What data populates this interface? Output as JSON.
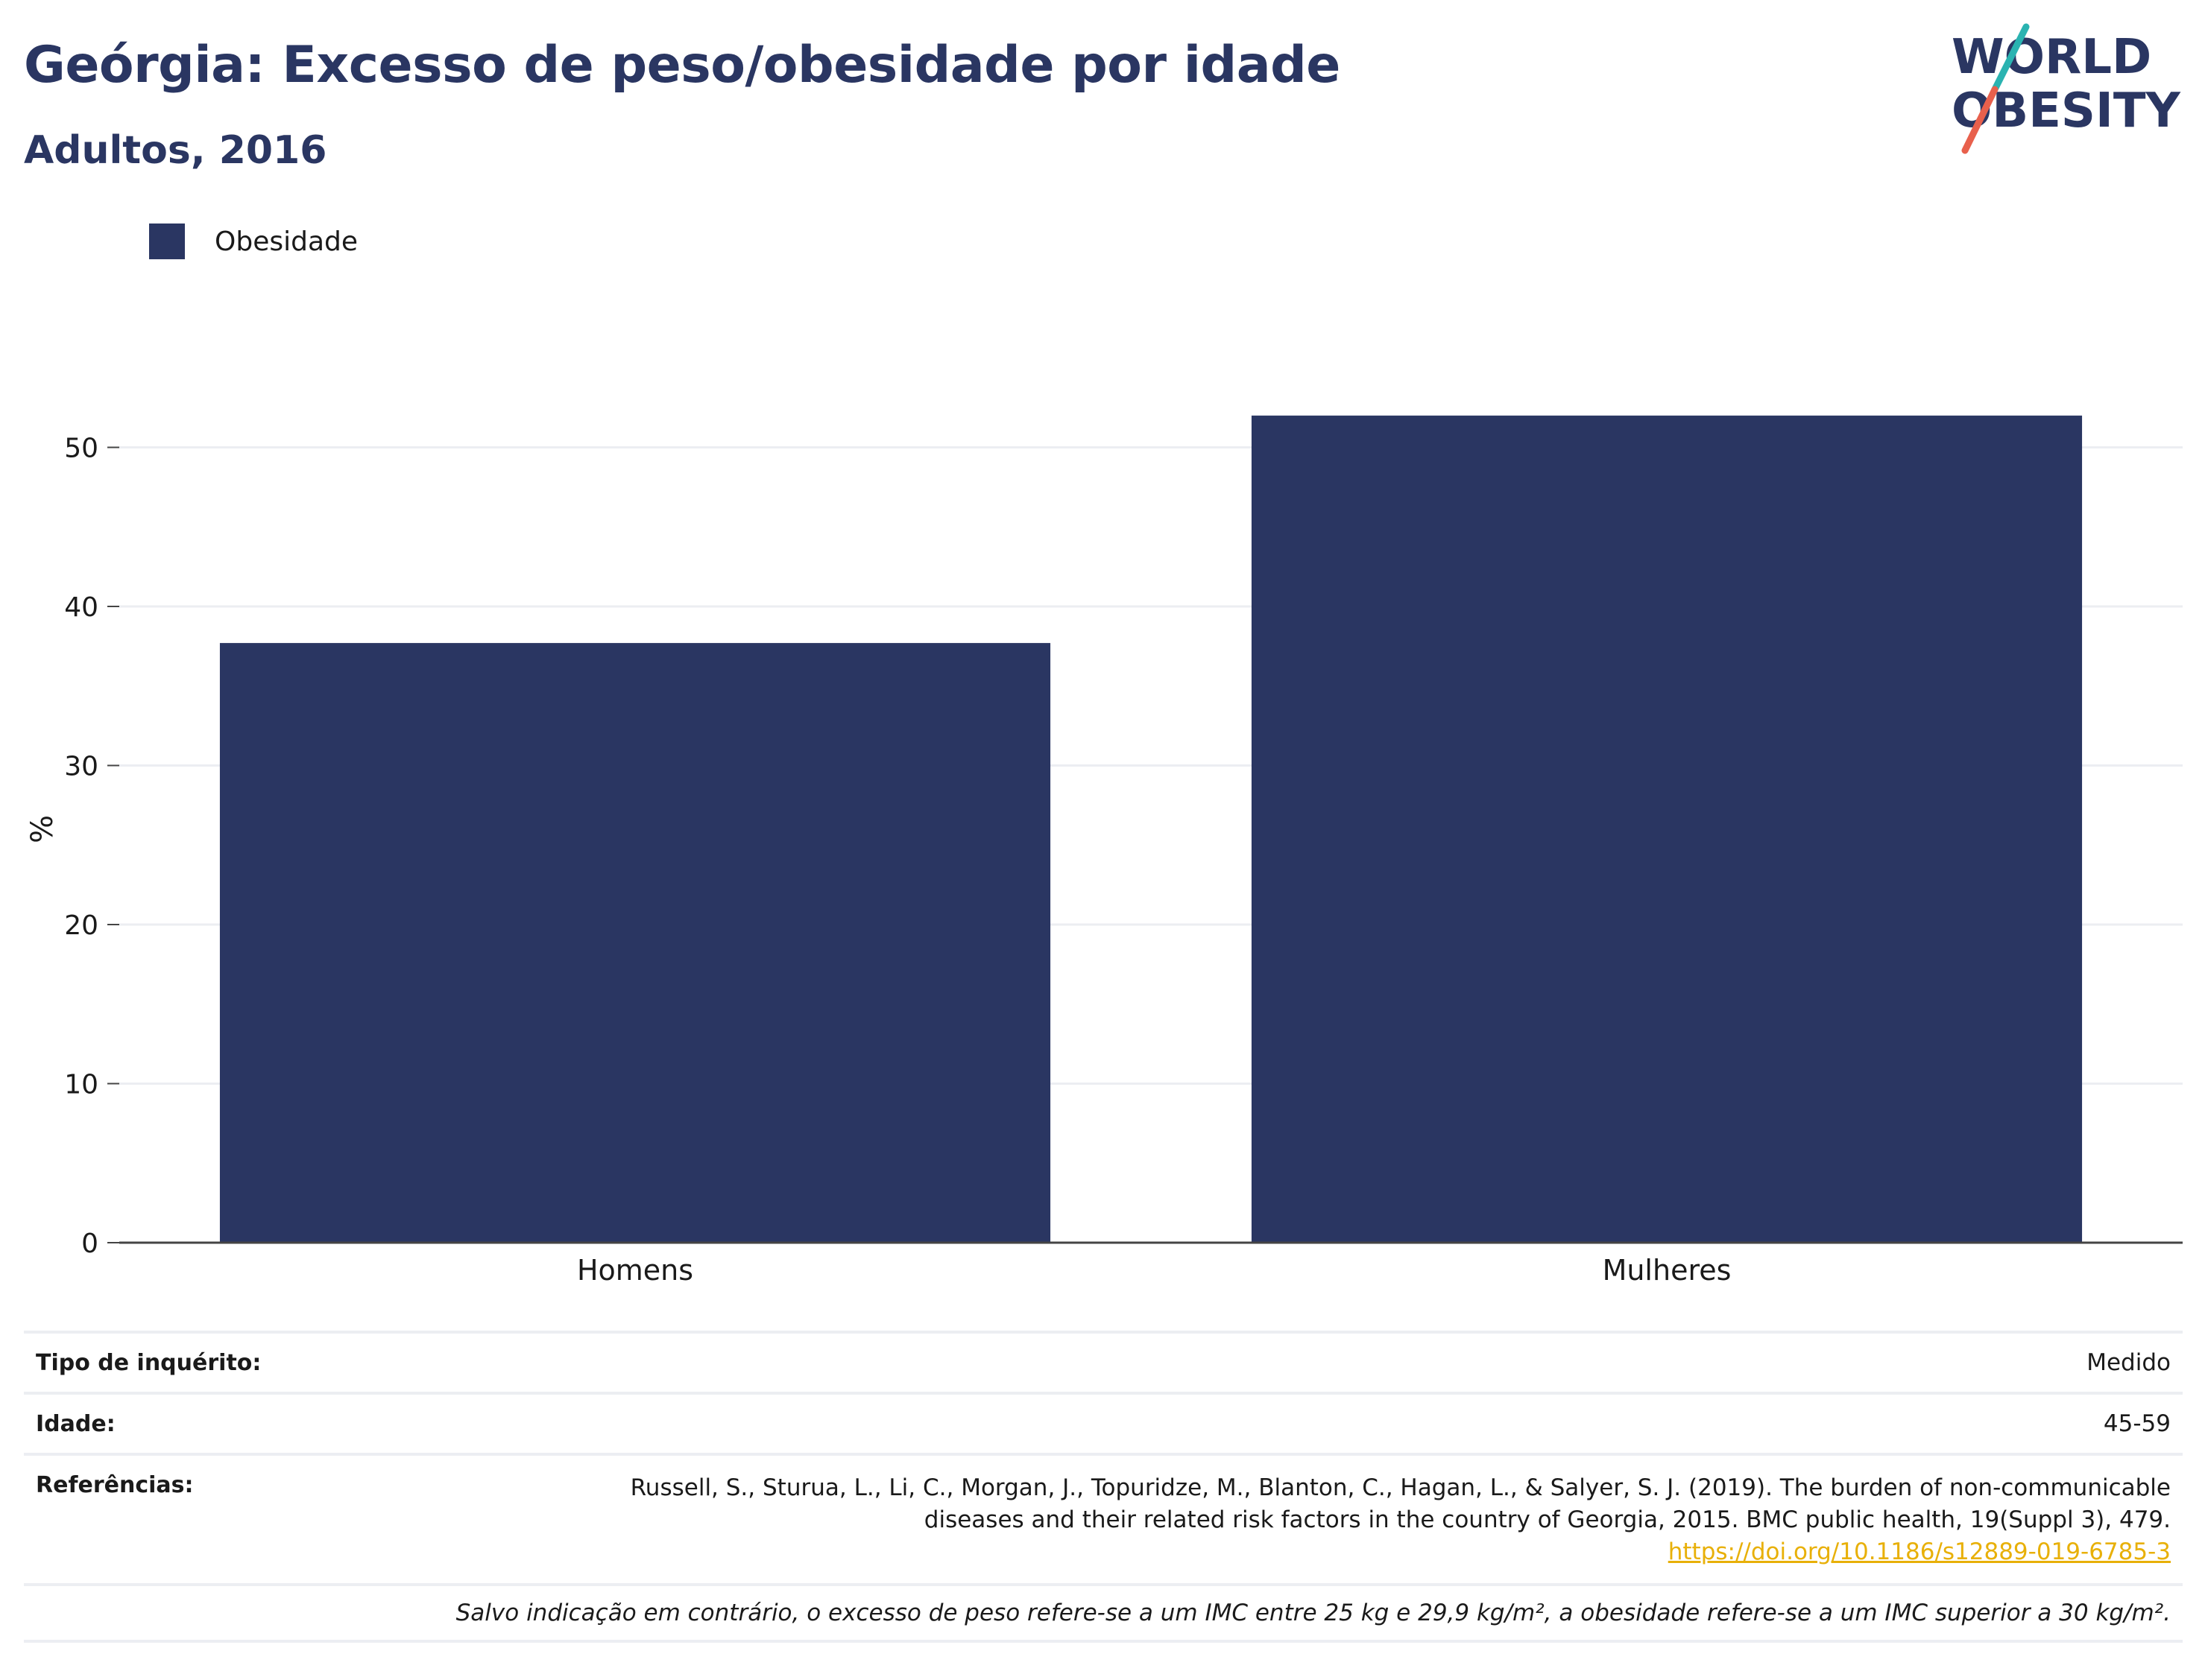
{
  "title": "Geórgia: Excesso de peso/obesidade por idade",
  "subtitle": "Adultos, 2016",
  "logo": {
    "line1": "WORLD",
    "line2": "OBESITY"
  },
  "colors": {
    "bar": "#2a3662",
    "title": "#2a3662",
    "link": "#e8b008",
    "logo_slash_top": "#2ab3b1",
    "logo_slash_bottom": "#e8604c"
  },
  "chart_data": {
    "type": "bar",
    "title": "Geórgia: Excesso de peso/obesidade por idade",
    "subtitle": "Adultos, 2016",
    "categories": [
      "Homens",
      "Mulheres"
    ],
    "series": [
      {
        "name": "Obesidade",
        "values": [
          37.7,
          52.0
        ]
      }
    ],
    "xlabel": "",
    "ylabel": "%",
    "ylim": [
      0,
      55
    ],
    "yticks": [
      0,
      10,
      20,
      30,
      40,
      50
    ],
    "grid": true,
    "legend_position": "top-left"
  },
  "meta": {
    "survey_label": "Tipo de inquérito:",
    "survey_value": "Medido",
    "age_label": "Idade:",
    "age_value": "45-59",
    "ref_label": "Referências:",
    "ref_line1": "Russell, S., Sturua, L., Li, C., Morgan, J., Topuridze, M., Blanton, C., Hagan, L., & Salyer, S. J. (2019). The burden of non-communicable",
    "ref_line2": "diseases and their related risk factors in the country of Georgia, 2015. BMC public health, 19(Suppl 3), 479.",
    "ref_link": "https://doi.org/10.1186/s12889-019-6785-3"
  },
  "note": "Salvo indicação em contrário, o excesso de peso refere-se a um IMC entre 25 kg e 29,9 kg/m², a obesidade refere-se a um IMC superior a 30 kg/m²."
}
